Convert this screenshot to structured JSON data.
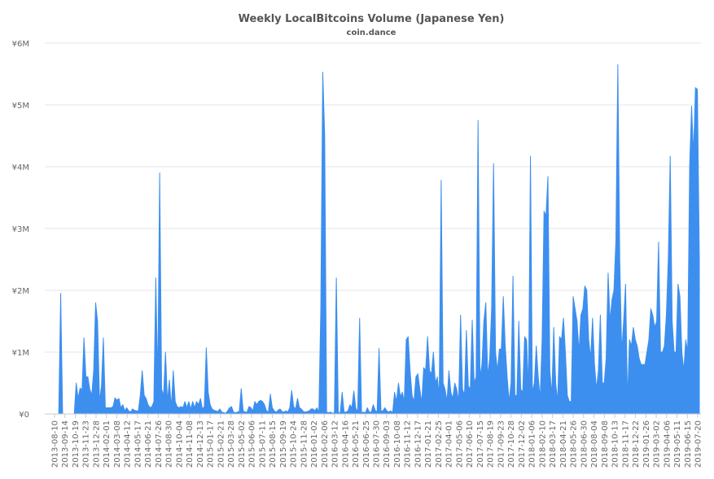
{
  "chart_data": {
    "type": "area",
    "title": "Weekly LocalBitcoins Volume (Japanese Yen)",
    "subtitle": "coin.dance",
    "xlabel": "",
    "ylabel": "",
    "ylim": [
      0,
      6000000
    ],
    "yticks": [
      {
        "value": 0,
        "label": "¥0"
      },
      {
        "value": 1000000,
        "label": "¥1M"
      },
      {
        "value": 2000000,
        "label": "¥2M"
      },
      {
        "value": 3000000,
        "label": "¥3M"
      },
      {
        "value": 4000000,
        "label": "¥4M"
      },
      {
        "value": 5000000,
        "label": "¥5M"
      },
      {
        "value": 6000000,
        "label": "¥6M"
      }
    ],
    "grid": true,
    "color": "#3d8fef",
    "x_labels": [
      "2013-08-10",
      "2013-09-14",
      "2013-10-19",
      "2013-11-23",
      "2013-12-28",
      "2014-02-01",
      "2014-03-08",
      "2014-04-12",
      "2014-05-17",
      "2014-06-21",
      "2014-07-26",
      "2014-08-30",
      "2014-10-04",
      "2014-11-08",
      "2014-12-13",
      "2015-01-17",
      "2015-02-21",
      "2015-03-28",
      "2015-05-02",
      "2015-06-06",
      "2015-07-11",
      "2015-08-15",
      "2015-09-19",
      "2015-10-24",
      "2015-11-28",
      "2016-01-02",
      "2016-02-06",
      "2016-03-12",
      "2016-04-16",
      "2016-05-21",
      "2016-06-25",
      "2016-07-30",
      "2016-09-03",
      "2016-10-08",
      "2016-11-12",
      "2016-12-17",
      "2017-01-21",
      "2017-02-25",
      "2017-04-01",
      "2017-05-06",
      "2017-06-10",
      "2017-07-15",
      "2017-08-19",
      "2017-09-23",
      "2017-10-28",
      "2017-12-02",
      "2018-01-06",
      "2018-02-10",
      "2018-03-17",
      "2018-04-21",
      "2018-05-26",
      "2018-06-30",
      "2018-08-04",
      "2018-09-08",
      "2018-10-13",
      "2018-11-17",
      "2018-12-22",
      "2019-01-26",
      "2019-03-02",
      "2019-04-06",
      "2019-05-11",
      "2019-06-15",
      "2019-07-20"
    ],
    "series": [
      {
        "name": "",
        "values": [
          0,
          0,
          0,
          0,
          1950000,
          0,
          0,
          0,
          0,
          0,
          0,
          0,
          500000,
          250000,
          420000,
          380000,
          1230000,
          600000,
          600000,
          400000,
          300000,
          700000,
          1800000,
          1500000,
          200000,
          450000,
          1230000,
          100000,
          100000,
          100000,
          100000,
          120000,
          260000,
          220000,
          250000,
          100000,
          150000,
          50000,
          100000,
          50000,
          30000,
          80000,
          60000,
          50000,
          50000,
          300000,
          700000,
          300000,
          250000,
          150000,
          100000,
          120000,
          200000,
          2200000,
          500000,
          3900000,
          400000,
          300000,
          1000000,
          200000,
          550000,
          100000,
          700000,
          200000,
          120000,
          100000,
          120000,
          100000,
          200000,
          100000,
          200000,
          80000,
          200000,
          100000,
          200000,
          150000,
          250000,
          80000,
          120000,
          1070000,
          350000,
          150000,
          80000,
          60000,
          50000,
          40000,
          80000,
          30000,
          20000,
          10000,
          50000,
          100000,
          120000,
          30000,
          20000,
          30000,
          40000,
          410000,
          50000,
          30000,
          30000,
          120000,
          100000,
          50000,
          200000,
          150000,
          200000,
          220000,
          200000,
          150000,
          50000,
          30000,
          320000,
          100000,
          50000,
          30000,
          60000,
          80000,
          40000,
          30000,
          50000,
          30000,
          100000,
          380000,
          120000,
          80000,
          250000,
          100000,
          80000,
          40000,
          30000,
          40000,
          50000,
          80000,
          80000,
          50000,
          100000,
          30000,
          1700000,
          5530000,
          4500000,
          30000,
          20000,
          30000,
          10000,
          20000,
          2200000,
          20000,
          20000,
          350000,
          30000,
          30000,
          50000,
          150000,
          100000,
          370000,
          100000,
          30000,
          1550000,
          20000,
          30000,
          20000,
          100000,
          30000,
          30000,
          150000,
          60000,
          30000,
          1060000,
          50000,
          50000,
          100000,
          50000,
          30000,
          50000,
          20000,
          350000,
          200000,
          500000,
          280000,
          350000,
          200000,
          1200000,
          1250000,
          700000,
          300000,
          200000,
          600000,
          650000,
          400000,
          180000,
          750000,
          700000,
          1250000,
          700000,
          650000,
          1000000,
          500000,
          600000,
          300000,
          3780000,
          500000,
          400000,
          200000,
          700000,
          350000,
          250000,
          500000,
          400000,
          200000,
          1600000,
          400000,
          300000,
          1350000,
          450000,
          400000,
          1520000,
          500000,
          600000,
          4750000,
          600000,
          800000,
          1500000,
          1800000,
          600000,
          900000,
          1700000,
          4050000,
          1000000,
          700000,
          1050000,
          1050000,
          1900000,
          1100000,
          600000,
          200000,
          500000,
          2230000,
          300000,
          300000,
          1500000,
          400000,
          350000,
          1250000,
          1200000,
          400000,
          4170000,
          350000,
          500000,
          1100000,
          600000,
          250000,
          1200000,
          3280000,
          3200000,
          3840000,
          700000,
          300000,
          1400000,
          500000,
          200000,
          1250000,
          1200000,
          1550000,
          1000000,
          300000,
          200000,
          200000,
          1900000,
          1700000,
          1500000,
          1000000,
          1600000,
          1700000,
          2070000,
          2000000,
          1200000,
          900000,
          1550000,
          800000,
          400000,
          700000,
          1600000,
          500000,
          500000,
          900000,
          2280000,
          1500000,
          1850000,
          2000000,
          2800000,
          5650000,
          2500000,
          1000000,
          1500000,
          2100000,
          200000,
          1200000,
          1100000,
          1400000,
          1200000,
          1100000,
          900000,
          800000,
          800000,
          800000,
          1000000,
          1200000,
          1700000,
          1600000,
          1400000,
          1500000,
          2780000,
          1000000,
          1000000,
          1100000,
          1600000,
          2500000,
          4170000,
          1500000,
          1000000,
          1000000,
          2100000,
          1900000,
          1000000,
          700000,
          1200000,
          1000000,
          4000000,
          4980000,
          4200000,
          5280000,
          5250000,
          2500000
        ]
      }
    ]
  }
}
